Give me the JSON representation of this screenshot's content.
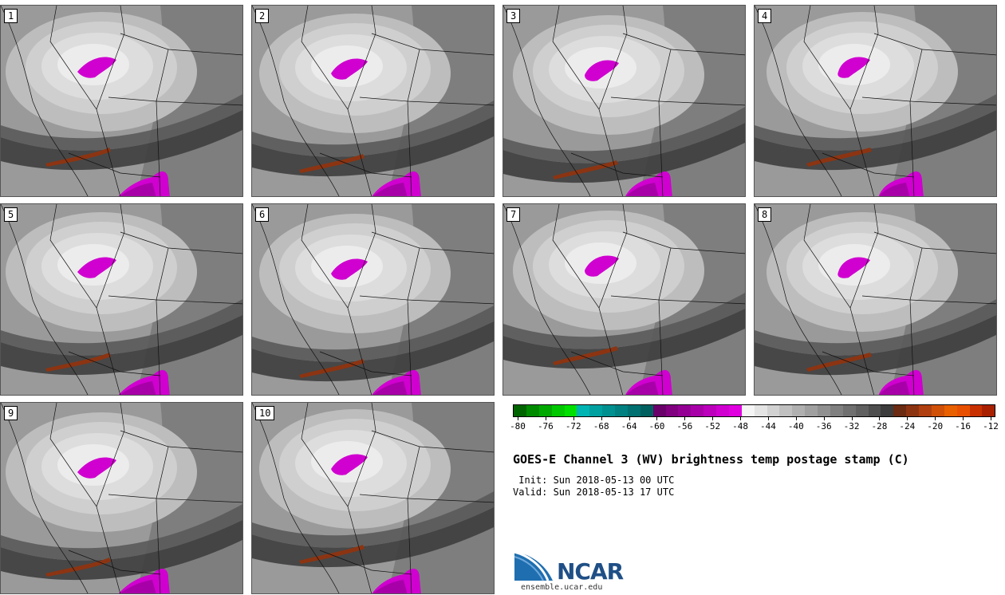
{
  "panels": [
    {
      "label": "1"
    },
    {
      "label": "2"
    },
    {
      "label": "3"
    },
    {
      "label": "4"
    },
    {
      "label": "5"
    },
    {
      "label": "6"
    },
    {
      "label": "7"
    },
    {
      "label": "8"
    },
    {
      "label": "9"
    },
    {
      "label": "10"
    }
  ],
  "colorbar": {
    "colors": [
      "#006400",
      "#008a00",
      "#00a800",
      "#00c800",
      "#00e000",
      "#00b4b4",
      "#00a0a0",
      "#009090",
      "#008080",
      "#007070",
      "#006060",
      "#6a006a",
      "#800080",
      "#940094",
      "#a800a8",
      "#bc00bc",
      "#d000d0",
      "#e000e0",
      "#f5f5f5",
      "#e4e4e4",
      "#d2d2d2",
      "#c0c0c0",
      "#b0b0b0",
      "#a0a0a0",
      "#909090",
      "#808080",
      "#707070",
      "#606060",
      "#4e4e4e",
      "#3c3c3c",
      "#6b2a12",
      "#8c3412",
      "#b04010",
      "#d05008",
      "#e86000",
      "#e85000",
      "#c83000",
      "#a82000"
    ],
    "tick_labels": [
      "-80",
      "-76",
      "-72",
      "-68",
      "-64",
      "-60",
      "-56",
      "-52",
      "-48",
      "-44",
      "-40",
      "-36",
      "-32",
      "-28",
      "-24",
      "-20",
      "-16",
      "-12"
    ]
  },
  "title": "GOES-E Channel 3 (WV) brightness temp postage stamp (C)",
  "init": " Init: Sun 2018-05-13 00 UTC",
  "valid": "Valid: Sun 2018-05-13 17 UTC",
  "logo": {
    "text": "NCAR",
    "url": "ensemble.ucar.edu"
  }
}
